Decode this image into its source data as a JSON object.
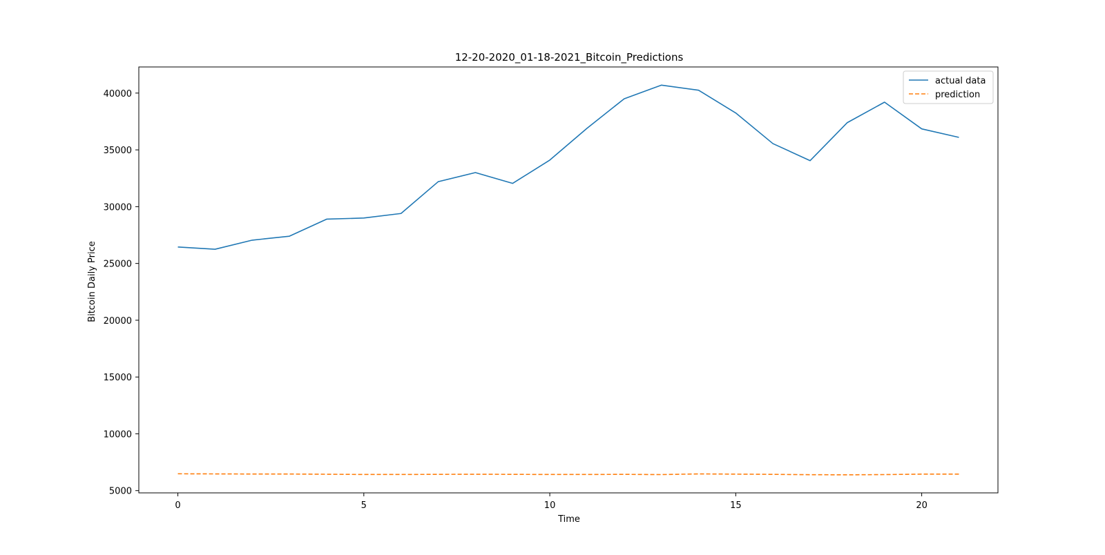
{
  "chart_data": {
    "type": "line",
    "title": "12-20-2020_01-18-2021_Bitcoin_Predictions",
    "xlabel": "Time",
    "ylabel": "Bitcoin Daily Price",
    "xlim": [
      -1.05,
      22.05
    ],
    "ylim": [
      4800,
      42300
    ],
    "xticks": [
      0,
      5,
      10,
      15,
      20
    ],
    "yticks": [
      5000,
      10000,
      15000,
      20000,
      25000,
      30000,
      35000,
      40000
    ],
    "grid": false,
    "legend_position": "top-right",
    "x": [
      0,
      1,
      2,
      3,
      4,
      5,
      6,
      7,
      8,
      9,
      10,
      11,
      12,
      13,
      14,
      15,
      16,
      17,
      18,
      19,
      20,
      21
    ],
    "series": [
      {
        "name": "actual data",
        "color": "#1f77b4",
        "style": "solid",
        "values": [
          26450,
          26250,
          27050,
          27400,
          28900,
          29000,
          29400,
          32200,
          33000,
          32050,
          34100,
          36900,
          39500,
          40700,
          40250,
          38250,
          35550,
          34050,
          37400,
          39200,
          36850,
          36100
        ]
      },
      {
        "name": "prediction",
        "color": "#ff7f0e",
        "style": "dashed",
        "values": [
          6480,
          6470,
          6460,
          6460,
          6440,
          6420,
          6420,
          6430,
          6440,
          6430,
          6420,
          6420,
          6430,
          6410,
          6470,
          6450,
          6430,
          6400,
          6390,
          6410,
          6450,
          6450
        ]
      }
    ]
  }
}
